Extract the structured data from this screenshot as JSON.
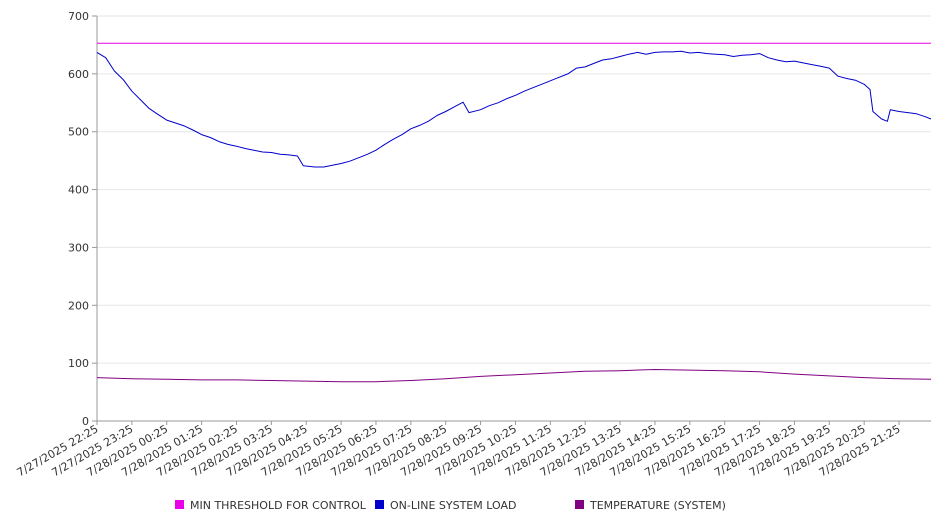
{
  "chart_data": {
    "type": "line",
    "title": "",
    "xlabel": "",
    "ylabel": "",
    "ylim": [
      0,
      700
    ],
    "yticks": [
      0,
      100,
      200,
      300,
      400,
      500,
      600,
      700
    ],
    "grid": true,
    "legend_position": "bottom",
    "x_range": [
      "7/27/2025 22:25",
      "7/28/2025 22:20"
    ],
    "x_tick_labels": [
      "7/27/2025 22:25",
      "7/27/2025 23:25",
      "7/28/2025 00:25",
      "7/28/2025 01:25",
      "7/28/2025 02:25",
      "7/28/2025 03:25",
      "7/28/2025 04:25",
      "7/28/2025 05:25",
      "7/28/2025 06:25",
      "7/28/2025 07:25",
      "7/28/2025 08:25",
      "7/28/2025 09:25",
      "7/28/2025 10:25",
      "7/28/2025 11:25",
      "7/28/2025 12:25",
      "7/28/2025 13:25",
      "7/28/2025 14:25",
      "7/28/2025 15:25",
      "7/28/2025 16:25",
      "7/28/2025 17:25",
      "7/28/2025 18:25",
      "7/28/2025 19:25",
      "7/28/2025 20:25",
      "7/28/2025 21:25"
    ],
    "series": [
      {
        "name": "MIN THRESHOLD FOR CONTROL",
        "color": "#e800e8",
        "points": [
          [
            "7/27/2025 22:25",
            653
          ],
          [
            "7/28/2025 22:20",
            653
          ]
        ]
      },
      {
        "name": "ON-LINE SYSTEM LOAD",
        "color": "#0000cc",
        "points": [
          [
            "7/27/2025 22:25",
            637
          ],
          [
            "7/27/2025 22:40",
            628
          ],
          [
            "7/27/2025 22:55",
            605
          ],
          [
            "7/27/2025 23:10",
            590
          ],
          [
            "7/27/2025 23:25",
            570
          ],
          [
            "7/27/2025 23:40",
            555
          ],
          [
            "7/27/2025 23:55",
            540
          ],
          [
            "7/28/2025 00:10",
            530
          ],
          [
            "7/28/2025 00:25",
            520
          ],
          [
            "7/28/2025 00:40",
            515
          ],
          [
            "7/28/2025 00:55",
            510
          ],
          [
            "7/28/2025 01:10",
            503
          ],
          [
            "7/28/2025 01:25",
            495
          ],
          [
            "7/28/2025 01:40",
            490
          ],
          [
            "7/28/2025 01:55",
            483
          ],
          [
            "7/28/2025 02:10",
            478
          ],
          [
            "7/28/2025 02:25",
            475
          ],
          [
            "7/28/2025 02:40",
            471
          ],
          [
            "7/28/2025 02:55",
            468
          ],
          [
            "7/28/2025 03:10",
            465
          ],
          [
            "7/28/2025 03:25",
            464
          ],
          [
            "7/28/2025 03:40",
            461
          ],
          [
            "7/28/2025 03:55",
            460
          ],
          [
            "7/28/2025 04:10",
            458
          ],
          [
            "7/28/2025 04:20",
            441
          ],
          [
            "7/28/2025 04:40",
            439
          ],
          [
            "7/28/2025 04:55",
            439
          ],
          [
            "7/28/2025 05:10",
            442
          ],
          [
            "7/28/2025 05:25",
            445
          ],
          [
            "7/28/2025 05:40",
            449
          ],
          [
            "7/28/2025 05:55",
            455
          ],
          [
            "7/28/2025 06:10",
            461
          ],
          [
            "7/28/2025 06:25",
            468
          ],
          [
            "7/28/2025 06:40",
            478
          ],
          [
            "7/28/2025 06:55",
            487
          ],
          [
            "7/28/2025 07:10",
            495
          ],
          [
            "7/28/2025 07:25",
            505
          ],
          [
            "7/28/2025 07:40",
            511
          ],
          [
            "7/28/2025 07:55",
            518
          ],
          [
            "7/28/2025 08:10",
            528
          ],
          [
            "7/28/2025 08:25",
            535
          ],
          [
            "7/28/2025 08:40",
            543
          ],
          [
            "7/28/2025 08:55",
            551
          ],
          [
            "7/28/2025 09:05",
            533
          ],
          [
            "7/28/2025 09:25",
            538
          ],
          [
            "7/28/2025 09:40",
            545
          ],
          [
            "7/28/2025 09:55",
            550
          ],
          [
            "7/28/2025 10:10",
            557
          ],
          [
            "7/28/2025 10:25",
            563
          ],
          [
            "7/28/2025 10:40",
            570
          ],
          [
            "7/28/2025 10:55",
            576
          ],
          [
            "7/28/2025 11:10",
            582
          ],
          [
            "7/28/2025 11:25",
            588
          ],
          [
            "7/28/2025 11:40",
            594
          ],
          [
            "7/28/2025 11:55",
            600
          ],
          [
            "7/28/2025 12:10",
            610
          ],
          [
            "7/28/2025 12:25",
            612
          ],
          [
            "7/28/2025 12:40",
            618
          ],
          [
            "7/28/2025 12:55",
            624
          ],
          [
            "7/28/2025 13:10",
            626
          ],
          [
            "7/28/2025 13:25",
            630
          ],
          [
            "7/28/2025 13:40",
            634
          ],
          [
            "7/28/2025 13:55",
            637
          ],
          [
            "7/28/2025 14:10",
            634
          ],
          [
            "7/28/2025 14:25",
            637
          ],
          [
            "7/28/2025 14:40",
            638
          ],
          [
            "7/28/2025 14:55",
            638
          ],
          [
            "7/28/2025 15:10",
            639
          ],
          [
            "7/28/2025 15:25",
            636
          ],
          [
            "7/28/2025 15:40",
            637
          ],
          [
            "7/28/2025 15:55",
            635
          ],
          [
            "7/28/2025 16:10",
            634
          ],
          [
            "7/28/2025 16:25",
            633
          ],
          [
            "7/28/2025 16:40",
            630
          ],
          [
            "7/28/2025 16:55",
            632
          ],
          [
            "7/28/2025 17:10",
            633
          ],
          [
            "7/28/2025 17:25",
            635
          ],
          [
            "7/28/2025 17:40",
            628
          ],
          [
            "7/28/2025 17:55",
            624
          ],
          [
            "7/28/2025 18:10",
            621
          ],
          [
            "7/28/2025 18:25",
            622
          ],
          [
            "7/28/2025 18:40",
            619
          ],
          [
            "7/28/2025 18:55",
            616
          ],
          [
            "7/28/2025 19:10",
            613
          ],
          [
            "7/28/2025 19:25",
            610
          ],
          [
            "7/28/2025 19:40",
            596
          ],
          [
            "7/28/2025 19:55",
            592
          ],
          [
            "7/28/2025 20:10",
            589
          ],
          [
            "7/28/2025 20:25",
            582
          ],
          [
            "7/28/2025 20:35",
            573
          ],
          [
            "7/28/2025 20:40",
            535
          ],
          [
            "7/28/2025 20:55",
            522
          ],
          [
            "7/28/2025 21:05",
            518
          ],
          [
            "7/28/2025 21:10",
            538
          ],
          [
            "7/28/2025 21:25",
            535
          ],
          [
            "7/28/2025 21:40",
            533
          ],
          [
            "7/28/2025 21:55",
            531
          ],
          [
            "7/28/2025 22:10",
            526
          ],
          [
            "7/28/2025 22:20",
            522
          ]
        ]
      },
      {
        "name": "TEMPERATURE (SYSTEM)",
        "color": "#800080",
        "points": [
          [
            "7/27/2025 22:25",
            75
          ],
          [
            "7/27/2025 23:25",
            73
          ],
          [
            "7/28/2025 00:25",
            72
          ],
          [
            "7/28/2025 01:25",
            71
          ],
          [
            "7/28/2025 02:25",
            71
          ],
          [
            "7/28/2025 03:25",
            70
          ],
          [
            "7/28/2025 04:25",
            69
          ],
          [
            "7/28/2025 05:25",
            68
          ],
          [
            "7/28/2025 06:25",
            68
          ],
          [
            "7/28/2025 07:25",
            70
          ],
          [
            "7/28/2025 08:25",
            73
          ],
          [
            "7/28/2025 09:25",
            77
          ],
          [
            "7/28/2025 10:25",
            80
          ],
          [
            "7/28/2025 11:25",
            83
          ],
          [
            "7/28/2025 12:25",
            86
          ],
          [
            "7/28/2025 13:25",
            87
          ],
          [
            "7/28/2025 14:25",
            89
          ],
          [
            "7/28/2025 15:25",
            88
          ],
          [
            "7/28/2025 16:25",
            87
          ],
          [
            "7/28/2025 17:25",
            85
          ],
          [
            "7/28/2025 18:25",
            81
          ],
          [
            "7/28/2025 19:25",
            78
          ],
          [
            "7/28/2025 20:25",
            75
          ],
          [
            "7/28/2025 21:25",
            73
          ],
          [
            "7/28/2025 22:20",
            72
          ]
        ]
      }
    ]
  }
}
